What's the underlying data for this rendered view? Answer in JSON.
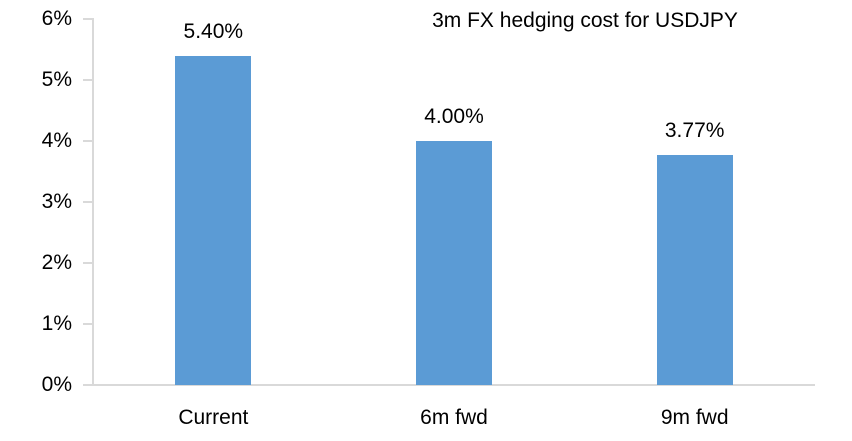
{
  "chart_data": {
    "type": "bar",
    "title": "3m FX hedging cost for USDJPY",
    "categories": [
      "Current",
      "6m fwd",
      "9m fwd"
    ],
    "values": [
      5.4,
      4.0,
      3.77
    ],
    "value_labels": [
      "5.40%",
      "4.00%",
      "3.77%"
    ],
    "y_tick_labels": [
      "0%",
      "1%",
      "2%",
      "3%",
      "4%",
      "5%",
      "6%"
    ],
    "ylim": [
      0,
      6
    ],
    "grid": false,
    "legend": "none",
    "colors": {
      "bar": "#5b9bd5",
      "axis": "#d9d9d9",
      "text": "#000000"
    }
  }
}
